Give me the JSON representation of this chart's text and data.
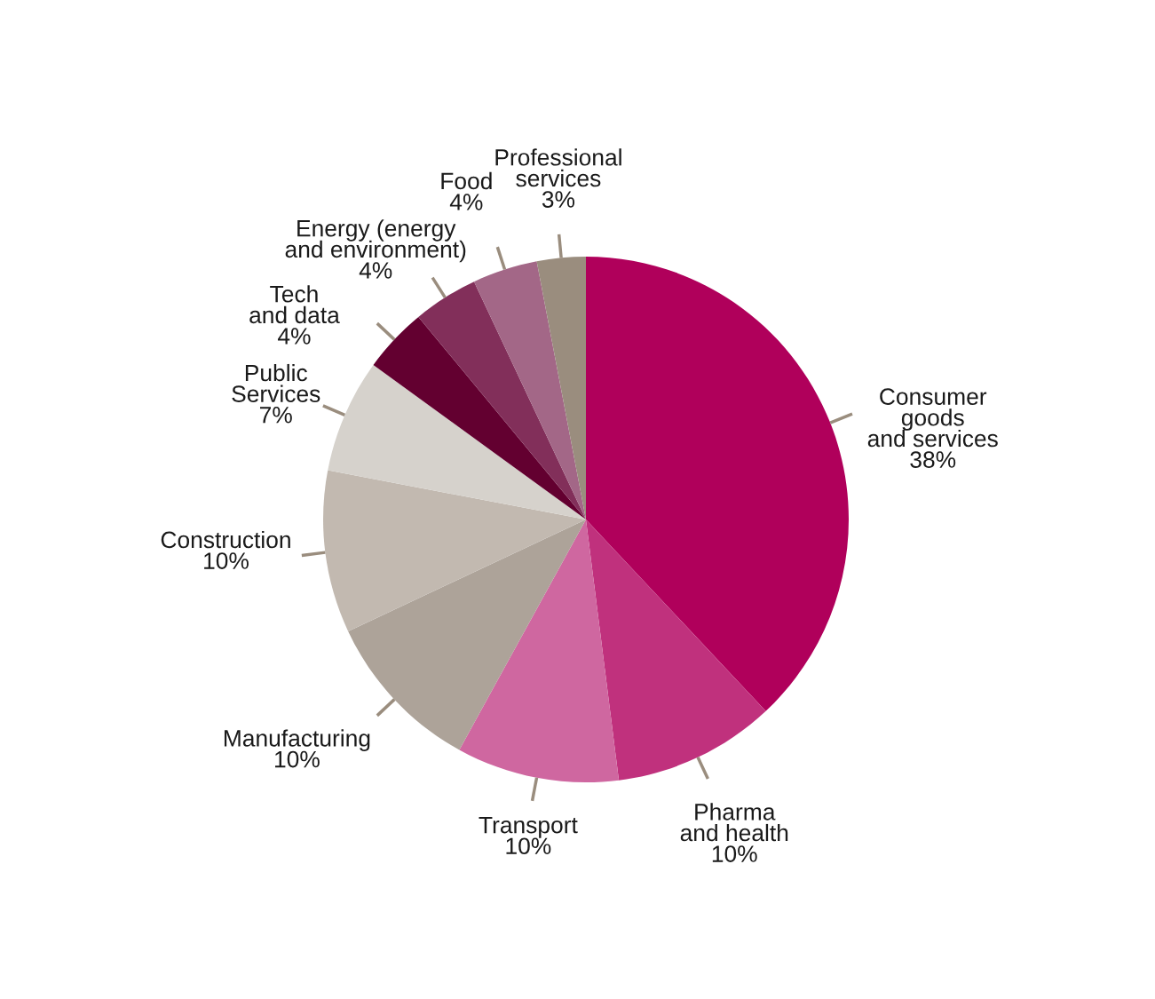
{
  "chart_data": {
    "type": "pie",
    "categories": [
      "Consumer\ngoods\nand services",
      "Pharma\nand health",
      "Transport",
      "Manufacturing",
      "Construction",
      "Public\nServices",
      "Tech\nand data",
      "Energy (energy\nand environment)",
      "Food",
      "Professional\nservices"
    ],
    "values": [
      38,
      10,
      10,
      10,
      10,
      7,
      4,
      4,
      4,
      3
    ],
    "value_labels": [
      "38%",
      "10%",
      "10%",
      "10%",
      "10%",
      "7%",
      "4%",
      "4%",
      "4%",
      "3%"
    ],
    "colors": [
      "#b0005b",
      "#c0317d",
      "#cf67a0",
      "#ada399",
      "#c2b9b0",
      "#d6d2cc",
      "#630030",
      "#822f5a",
      "#a36787",
      "#9a8d7e"
    ],
    "legend": false
  }
}
